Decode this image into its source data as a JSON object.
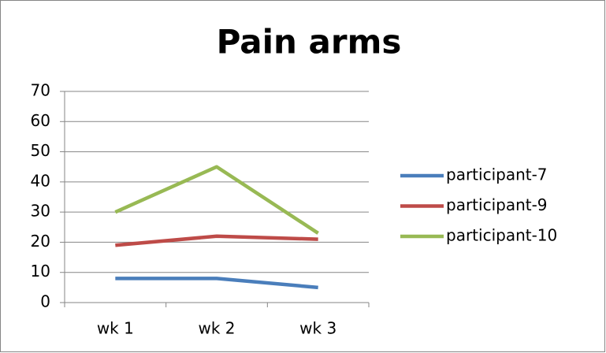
{
  "chart_data": {
    "type": "line",
    "title": "Pain arms",
    "categories": [
      "wk 1",
      "wk 2",
      "wk 3"
    ],
    "series": [
      {
        "name": "participant-7",
        "color": "#4a7ebb",
        "values": [
          8,
          8,
          5
        ]
      },
      {
        "name": "participant-9",
        "color": "#be4b48",
        "values": [
          19,
          22,
          21
        ]
      },
      {
        "name": "participant-10",
        "color": "#98b954",
        "values": [
          30,
          45,
          23
        ]
      }
    ],
    "ylim": [
      0,
      70
    ],
    "yticks": [
      0,
      10,
      20,
      30,
      40,
      50,
      60,
      70
    ],
    "grid": true,
    "legend": "right"
  }
}
